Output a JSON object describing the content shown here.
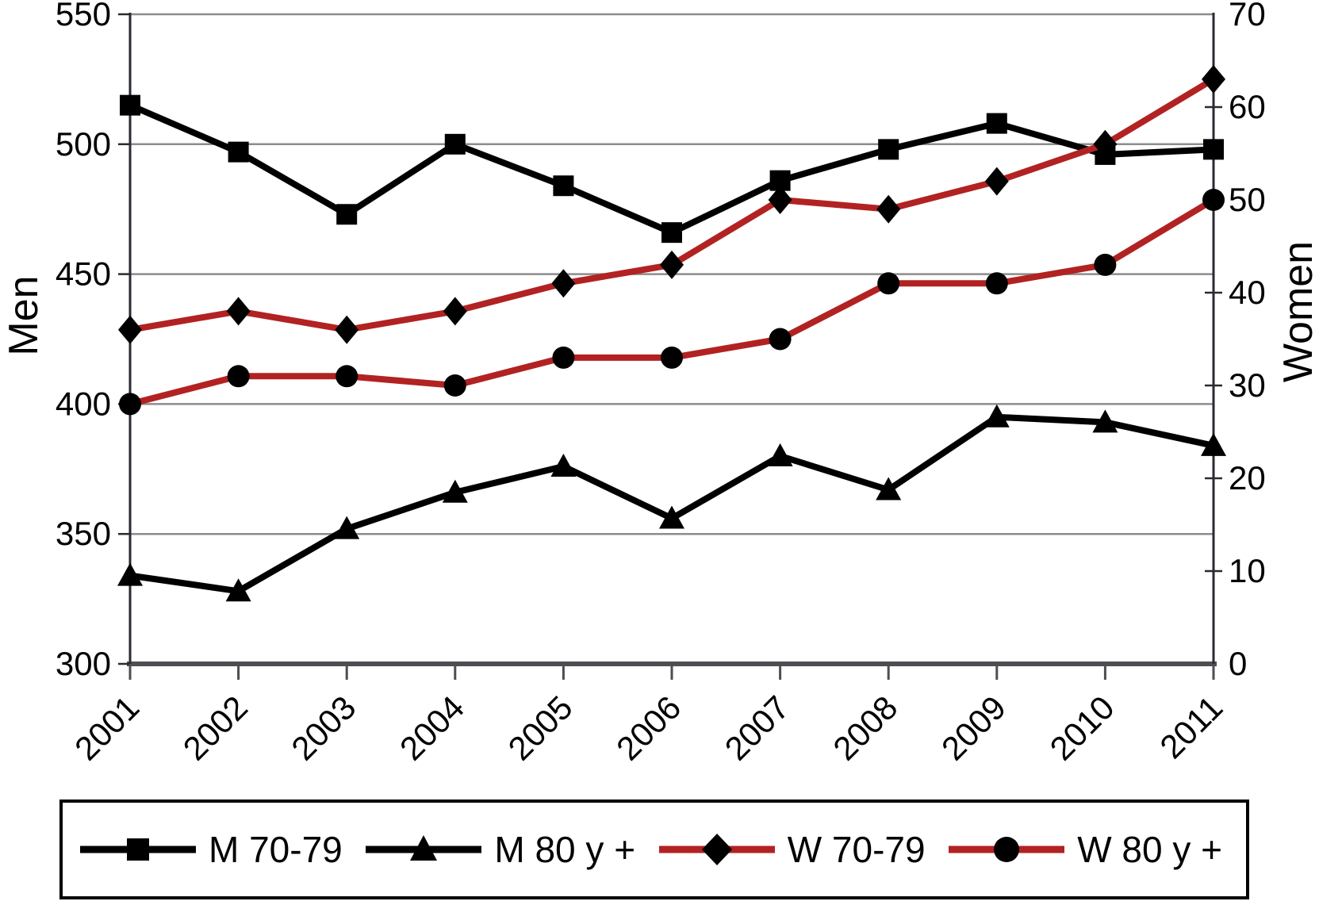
{
  "chart_data": {
    "type": "line",
    "x": [
      "2001",
      "2002",
      "2003",
      "2004",
      "2005",
      "2006",
      "2007",
      "2008",
      "2009",
      "2010",
      "2011"
    ],
    "left_axis": {
      "label": "Men",
      "range": [
        300,
        550
      ],
      "ticks": [
        550,
        500,
        450,
        400,
        350,
        300
      ]
    },
    "right_axis": {
      "label": "Women",
      "range": [
        0,
        70
      ],
      "ticks": [
        70,
        60,
        50,
        40,
        30,
        20,
        10,
        0
      ]
    },
    "grid": "horizontal",
    "legend_position": "bottom",
    "series": [
      {
        "name": "M 70-79",
        "axis": "left",
        "marker": "square",
        "line_color": "#000000",
        "marker_color": "#000000",
        "values": [
          515,
          497,
          473,
          500,
          484,
          466,
          486,
          498,
          508,
          496,
          498
        ]
      },
      {
        "name": "M 80 y +",
        "axis": "left",
        "marker": "triangle",
        "line_color": "#000000",
        "marker_color": "#000000",
        "values": [
          334,
          328,
          352,
          366,
          376,
          356,
          380,
          367,
          395,
          393,
          384
        ]
      },
      {
        "name": "W 70-79",
        "axis": "right",
        "marker": "diamond",
        "line_color": "#b22222",
        "marker_color": "#000000",
        "values": [
          36,
          38,
          36,
          38,
          41,
          43,
          50,
          49,
          52,
          56,
          63
        ]
      },
      {
        "name": "W 80 y +",
        "axis": "right",
        "marker": "circle",
        "line_color": "#b22222",
        "marker_color": "#000000",
        "values": [
          28,
          31,
          31,
          30,
          33,
          33,
          35,
          41,
          41,
          43,
          50
        ]
      }
    ],
    "colors": {
      "gridline": "#8c8c8c",
      "axis_line": "#2a2a33",
      "x_axis_line": "#4d4d52",
      "text": "#000000"
    }
  }
}
